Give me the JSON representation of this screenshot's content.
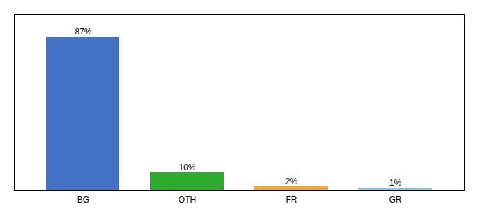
{
  "chart_data": {
    "type": "bar",
    "categories": [
      "BG",
      "OTH",
      "FR",
      "GR"
    ],
    "values": [
      87,
      10,
      2,
      1
    ],
    "value_labels": [
      "87%",
      "10%",
      "2%",
      "1%"
    ],
    "colors": [
      "#4472c4",
      "#2eab2e",
      "#f5a623",
      "#7ec8e3"
    ],
    "ylim": [
      0,
      100
    ],
    "data_labels": true,
    "tick_labels": "x"
  }
}
